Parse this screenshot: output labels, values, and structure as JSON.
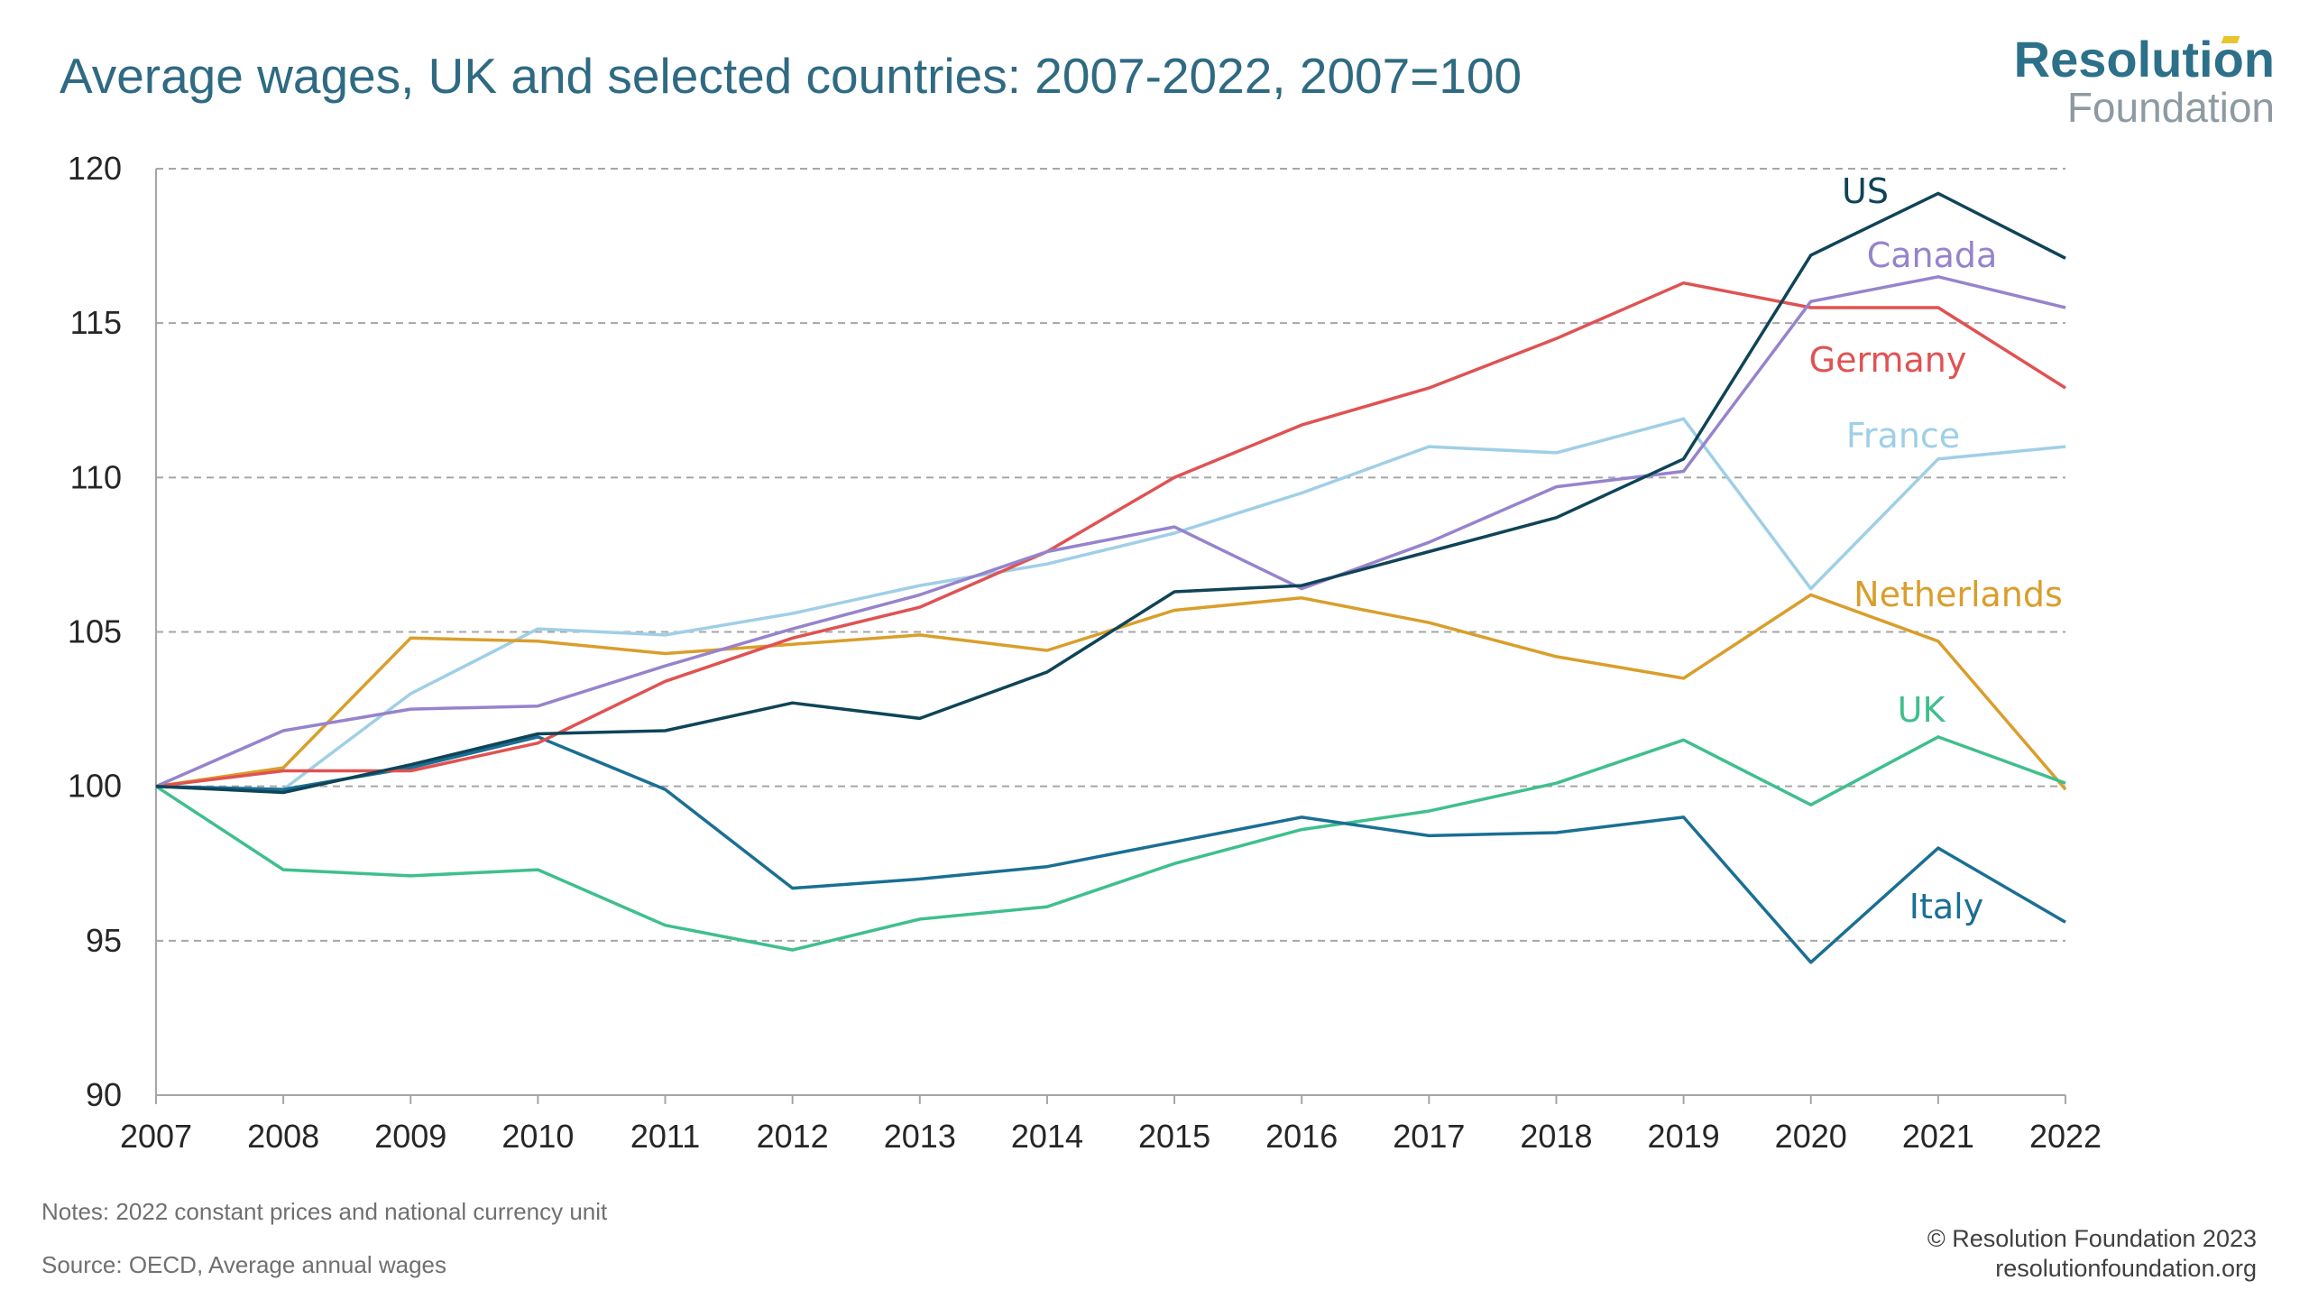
{
  "header": {
    "title": "Average wages, UK and selected countries: 2007-2022, 2007=100"
  },
  "logo": {
    "line1": "Resolution",
    "line2": "Foundation",
    "primary_color": "#2d7089",
    "secondary_color": "#8d9aa2",
    "accent_color": "#e9c52d"
  },
  "chart_data": {
    "type": "line",
    "title": "Average wages, UK and selected countries: 2007-2022, 2007=100",
    "xlabel": "",
    "ylabel": "",
    "x": [
      "2007",
      "2008",
      "2009",
      "2010",
      "2011",
      "2012",
      "2013",
      "2014",
      "2015",
      "2016",
      "2017",
      "2018",
      "2019",
      "2020",
      "2021",
      "2022"
    ],
    "ylim": [
      90,
      120
    ],
    "yticks": [
      "90",
      "95",
      "100",
      "105",
      "110",
      "115",
      "120"
    ],
    "grid": "horizontal dashed",
    "legend": "direct labels on right",
    "series": [
      {
        "name": "US",
        "color": "#0f4457",
        "values": [
          100,
          99.8,
          100.7,
          101.7,
          101.8,
          102.7,
          102.2,
          103.7,
          106.3,
          106.5,
          107.6,
          108.7,
          110.6,
          117.2,
          119.2,
          117.1
        ]
      },
      {
        "name": "Canada",
        "color": "#9683cc",
        "values": [
          100,
          101.8,
          102.5,
          102.6,
          103.9,
          105.1,
          106.2,
          107.6,
          108.4,
          106.4,
          107.9,
          109.7,
          110.2,
          115.7,
          116.5,
          115.5
        ]
      },
      {
        "name": "Germany",
        "color": "#e05252",
        "values": [
          100,
          100.5,
          100.5,
          101.4,
          103.4,
          104.8,
          105.8,
          107.6,
          110.0,
          111.7,
          112.9,
          114.5,
          116.3,
          115.5,
          115.5,
          112.9
        ]
      },
      {
        "name": "France",
        "color": "#9fcfe6",
        "values": [
          100,
          99.9,
          103.0,
          105.1,
          104.9,
          105.6,
          106.5,
          107.2,
          108.2,
          109.5,
          111.0,
          110.8,
          111.9,
          106.4,
          110.6,
          111.0
        ]
      },
      {
        "name": "Netherlands",
        "color": "#d99e2b",
        "values": [
          100,
          100.6,
          104.8,
          104.7,
          104.3,
          104.6,
          104.9,
          104.4,
          105.7,
          106.1,
          105.3,
          104.2,
          103.5,
          106.2,
          104.7,
          99.9
        ]
      },
      {
        "name": "UK",
        "color": "#3fbf8d",
        "values": [
          100,
          97.3,
          97.1,
          97.3,
          95.5,
          94.7,
          95.7,
          96.1,
          97.5,
          98.6,
          99.2,
          100.1,
          101.5,
          99.4,
          101.6,
          100.1
        ]
      },
      {
        "name": "Italy",
        "color": "#1a6f93",
        "values": [
          100,
          99.9,
          100.6,
          101.6,
          99.9,
          96.7,
          97.0,
          97.4,
          98.2,
          99.0,
          98.4,
          98.5,
          99.0,
          94.3,
          98.0,
          95.6
        ]
      }
    ]
  },
  "footer": {
    "notes": "Notes: 2022 constant prices and national currency unit",
    "source": "Source: OECD, Average annual wages",
    "copyright": "© Resolution Foundation 2023",
    "website": "resolutionfoundation.org"
  }
}
